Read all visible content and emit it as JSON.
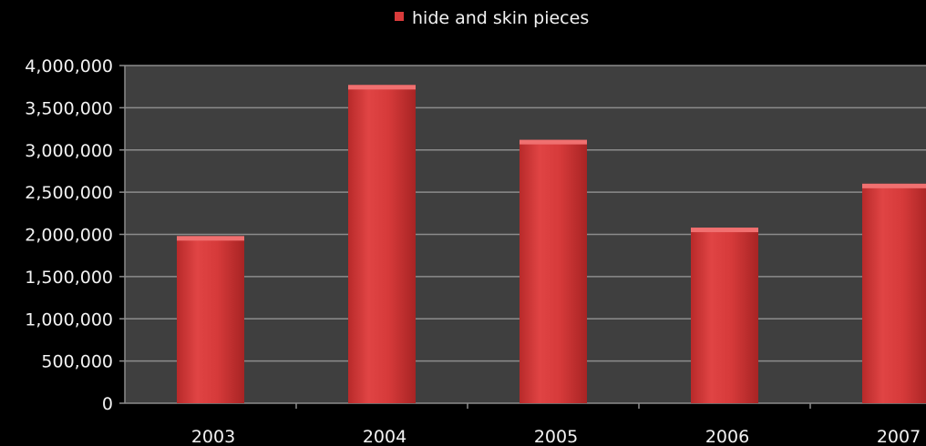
{
  "chart_data": {
    "type": "bar",
    "categories": [
      "2003",
      "2004",
      "2005",
      "2006",
      "2007"
    ],
    "series": [
      {
        "name": "hide and skin pieces",
        "values": [
          1980000,
          3770000,
          3120000,
          2080000,
          2600000
        ]
      }
    ],
    "ylim": [
      0,
      4000000
    ],
    "yticks": [
      "0",
      "500,000",
      "1,000,000",
      "1,500,000",
      "2,000,000",
      "2,500,000",
      "3,000,000",
      "3,500,000",
      "4,000,000"
    ],
    "title": "",
    "xlabel": "",
    "ylabel": "",
    "legend_position": "top-center",
    "grid": true,
    "colors": {
      "background": "#000000",
      "plot_area": "#3f3f3f",
      "gridline": "#8c8c8c",
      "bar": "#d93b3b",
      "text": "#f2f2f2"
    }
  }
}
